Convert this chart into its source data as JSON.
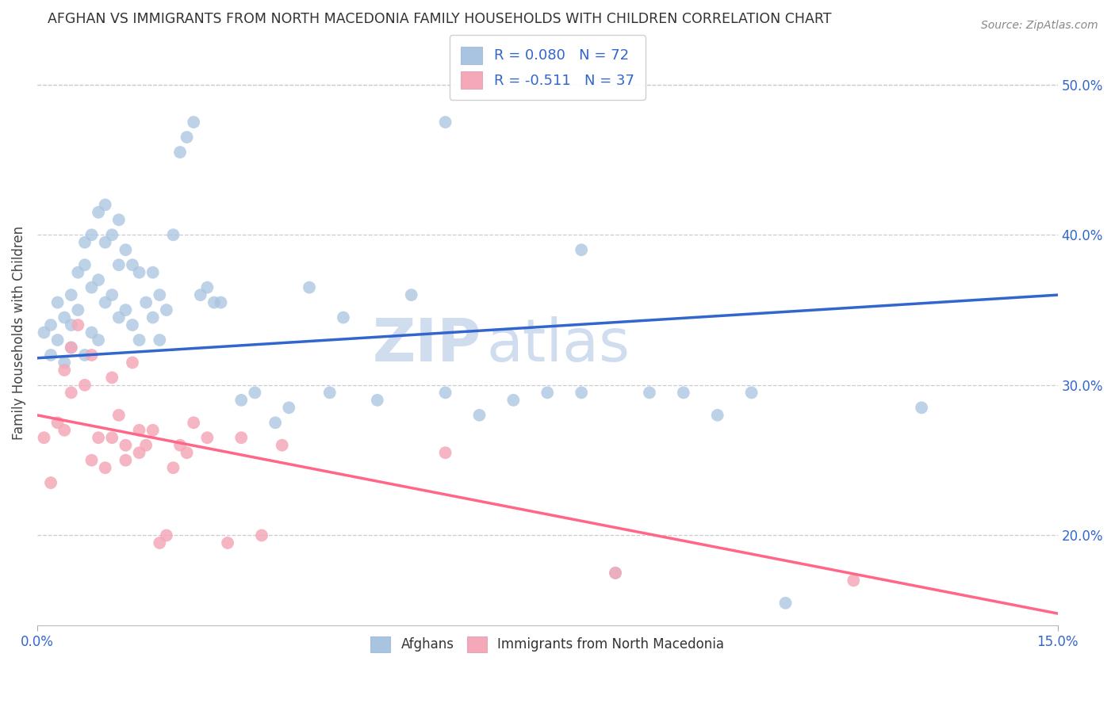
{
  "title": "AFGHAN VS IMMIGRANTS FROM NORTH MACEDONIA FAMILY HOUSEHOLDS WITH CHILDREN CORRELATION CHART",
  "source": "Source: ZipAtlas.com",
  "ylabel": "Family Households with Children",
  "xlim": [
    0.0,
    0.15
  ],
  "ylim": [
    0.14,
    0.53
  ],
  "blue_color": "#A8C4E0",
  "pink_color": "#F4A8B8",
  "blue_line_color": "#3366CC",
  "pink_line_color": "#FF6688",
  "text_color_blue": "#3366CC",
  "R_blue": 0.08,
  "N_blue": 72,
  "R_pink": -0.511,
  "N_pink": 37,
  "legend_label_blue": "Afghans",
  "legend_label_pink": "Immigrants from North Macedonia",
  "blue_trend_x": [
    0.0,
    0.15
  ],
  "blue_trend_y": [
    0.318,
    0.36
  ],
  "pink_trend_x": [
    0.0,
    0.15
  ],
  "pink_trend_y": [
    0.28,
    0.148
  ],
  "blue_x": [
    0.001,
    0.002,
    0.002,
    0.003,
    0.003,
    0.004,
    0.004,
    0.005,
    0.005,
    0.005,
    0.006,
    0.006,
    0.007,
    0.007,
    0.007,
    0.008,
    0.008,
    0.008,
    0.009,
    0.009,
    0.009,
    0.01,
    0.01,
    0.01,
    0.011,
    0.011,
    0.012,
    0.012,
    0.012,
    0.013,
    0.013,
    0.014,
    0.014,
    0.015,
    0.015,
    0.016,
    0.017,
    0.017,
    0.018,
    0.018,
    0.019,
    0.02,
    0.021,
    0.022,
    0.023,
    0.024,
    0.025,
    0.026,
    0.027,
    0.03,
    0.032,
    0.035,
    0.037,
    0.04,
    0.043,
    0.045,
    0.05,
    0.055,
    0.06,
    0.065,
    0.07,
    0.075,
    0.08,
    0.085,
    0.09,
    0.095,
    0.1,
    0.105,
    0.11,
    0.06,
    0.08,
    0.13
  ],
  "blue_y": [
    0.335,
    0.34,
    0.32,
    0.355,
    0.33,
    0.345,
    0.315,
    0.36,
    0.34,
    0.325,
    0.375,
    0.35,
    0.395,
    0.38,
    0.32,
    0.4,
    0.365,
    0.335,
    0.415,
    0.37,
    0.33,
    0.42,
    0.395,
    0.355,
    0.4,
    0.36,
    0.41,
    0.38,
    0.345,
    0.39,
    0.35,
    0.38,
    0.34,
    0.375,
    0.33,
    0.355,
    0.375,
    0.345,
    0.36,
    0.33,
    0.35,
    0.4,
    0.455,
    0.465,
    0.475,
    0.36,
    0.365,
    0.355,
    0.355,
    0.29,
    0.295,
    0.275,
    0.285,
    0.365,
    0.295,
    0.345,
    0.29,
    0.36,
    0.295,
    0.28,
    0.29,
    0.295,
    0.295,
    0.175,
    0.295,
    0.295,
    0.28,
    0.295,
    0.155,
    0.475,
    0.39,
    0.285
  ],
  "pink_x": [
    0.001,
    0.002,
    0.003,
    0.004,
    0.004,
    0.005,
    0.005,
    0.006,
    0.007,
    0.008,
    0.008,
    0.009,
    0.01,
    0.011,
    0.011,
    0.012,
    0.013,
    0.013,
    0.014,
    0.015,
    0.015,
    0.016,
    0.017,
    0.018,
    0.019,
    0.02,
    0.021,
    0.022,
    0.023,
    0.025,
    0.028,
    0.03,
    0.033,
    0.036,
    0.06,
    0.085,
    0.12
  ],
  "pink_y": [
    0.265,
    0.235,
    0.275,
    0.31,
    0.27,
    0.325,
    0.295,
    0.34,
    0.3,
    0.25,
    0.32,
    0.265,
    0.245,
    0.305,
    0.265,
    0.28,
    0.25,
    0.26,
    0.315,
    0.27,
    0.255,
    0.26,
    0.27,
    0.195,
    0.2,
    0.245,
    0.26,
    0.255,
    0.275,
    0.265,
    0.195,
    0.265,
    0.2,
    0.26,
    0.255,
    0.175,
    0.17
  ]
}
